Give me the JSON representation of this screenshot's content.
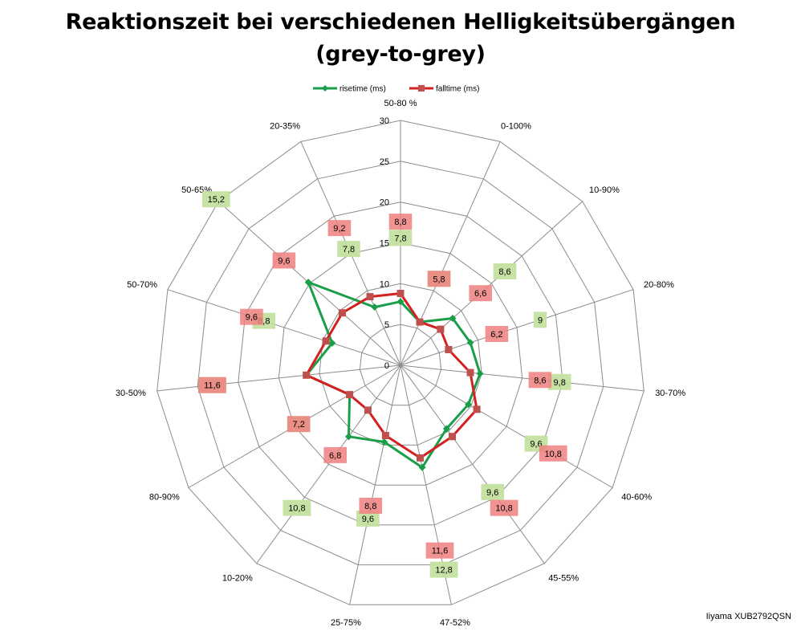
{
  "chart_data": {
    "type": "radar",
    "title": "Reaktionszeit bei verschiedenen Helligkeitsübergängen",
    "subtitle": "(grey-to-grey)",
    "categories": [
      "50-80 %",
      "0-100%",
      "10-90%",
      "20-80%",
      "30-70%",
      "40-60%",
      "45-55%",
      "47-52%",
      "25-75%",
      "10-20%",
      "80-90%",
      "30-50%",
      "50-70%",
      "50-65%",
      "20-35%"
    ],
    "radial_ticks": [
      "0",
      "5",
      "10",
      "15",
      "20",
      "25",
      "30"
    ],
    "rmax": 30,
    "legend_position": "top",
    "series": [
      {
        "name": "risetime (ms)",
        "color": "#1a9e4a",
        "marker": "diamond",
        "values": [
          7.8,
          5.8,
          8.6,
          9,
          9.8,
          9.6,
          9.6,
          12.8,
          9.6,
          10.8,
          7.2,
          11.6,
          8.8,
          15.2,
          7.8
        ],
        "labels": [
          "7,8",
          "5,8",
          "8,6",
          "9",
          "9,8",
          "9,6",
          "9,6",
          "12,8",
          "9,6",
          "10,8",
          "7,2",
          "11,6",
          "8,8",
          "15,2",
          "7,8"
        ],
        "label_bg": "#c4e0a0"
      },
      {
        "name": "falltime (ms)",
        "color": "#d42020",
        "marker": "square",
        "values": [
          8.8,
          5.8,
          6.6,
          6.2,
          8.6,
          10.8,
          10.8,
          11.6,
          8.8,
          6.8,
          7.2,
          11.6,
          9.6,
          9.6,
          9.2
        ],
        "labels": [
          "8,8",
          "5,8",
          "6,6",
          "6,2",
          "8,6",
          "10,8",
          "10,8",
          "11,6",
          "8,8",
          "6,8",
          "7,2",
          "11,6",
          "9,6",
          "9,6",
          "9,2"
        ],
        "label_bg": "#f08080"
      }
    ]
  },
  "footer": "Iiyama XUB2792QSN"
}
